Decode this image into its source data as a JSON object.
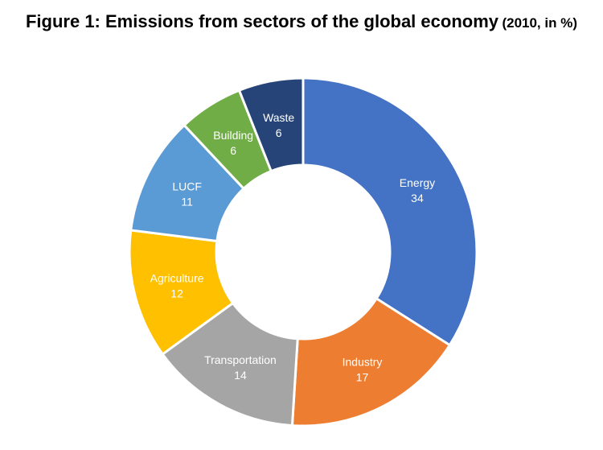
{
  "chart_data": {
    "type": "pie",
    "variant": "donut",
    "title": "Figure 1: Emissions from sectors of the global economy",
    "subtitle": "(2010, in %)",
    "categories": [
      "Energy",
      "Industry",
      "Transportation",
      "Agriculture",
      "LUCF",
      "Building",
      "Waste"
    ],
    "values": [
      34,
      17,
      14,
      12,
      11,
      6,
      6
    ],
    "colors": [
      "#4472C4",
      "#ED7D31",
      "#A5A5A5",
      "#FFC000",
      "#5B9BD5",
      "#70AD47",
      "#264478"
    ],
    "legend": "none"
  }
}
